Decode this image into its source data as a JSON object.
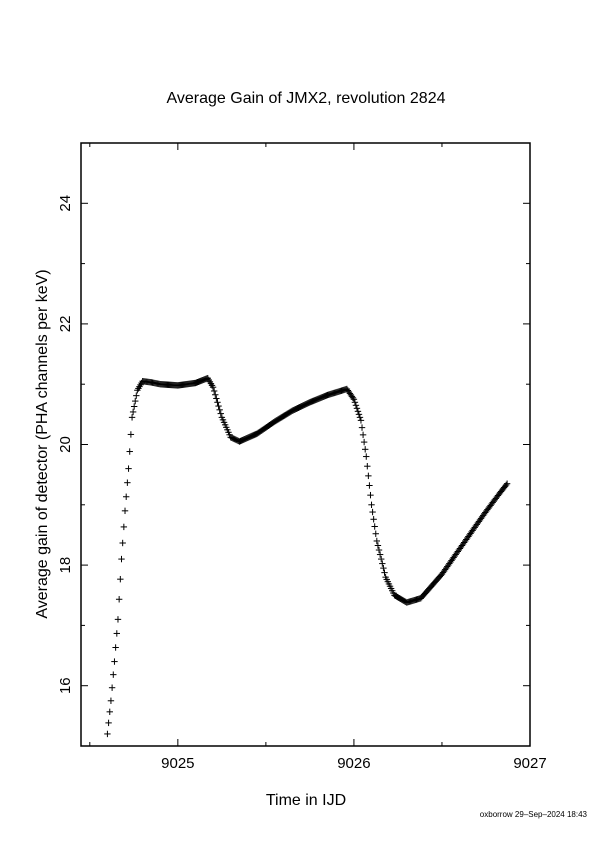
{
  "chart_data": {
    "type": "scatter",
    "title": "Average Gain of JMX2, revolution 2824",
    "xlabel": "Time in IJD",
    "ylabel": "Average gain of detector (PHA channels per keV)",
    "xlim": [
      9024.45,
      9027
    ],
    "ylim": [
      15,
      25
    ],
    "x_ticks": [
      9025,
      9026,
      9027
    ],
    "y_ticks": [
      16,
      18,
      20,
      22,
      24
    ],
    "x_tick_labels": [
      "9025",
      "9026",
      "9027"
    ],
    "y_tick_labels": [
      "16",
      "18",
      "20",
      "22",
      "24"
    ],
    "marker": "plus",
    "grid": false,
    "legend": "none",
    "series": [
      {
        "points": [
          [
            9024.6,
            15.2
          ],
          [
            9024.62,
            15.75
          ],
          [
            9024.64,
            16.4
          ],
          [
            9024.66,
            17.1
          ],
          [
            9024.68,
            18.1
          ],
          [
            9024.7,
            18.9
          ],
          [
            9024.72,
            19.6
          ],
          [
            9024.74,
            20.45
          ],
          [
            9024.77,
            20.9
          ],
          [
            9024.8,
            21.05
          ],
          [
            9024.85,
            21.03
          ],
          [
            9024.9,
            21.0
          ],
          [
            9025.0,
            20.98
          ],
          [
            9025.1,
            21.02
          ],
          [
            9025.17,
            21.1
          ],
          [
            9025.2,
            20.95
          ],
          [
            9025.25,
            20.45
          ],
          [
            9025.3,
            20.12
          ],
          [
            9025.35,
            20.05
          ],
          [
            9025.45,
            20.18
          ],
          [
            9025.55,
            20.38
          ],
          [
            9025.65,
            20.56
          ],
          [
            9025.75,
            20.7
          ],
          [
            9025.85,
            20.82
          ],
          [
            9025.96,
            20.92
          ],
          [
            9026.0,
            20.75
          ],
          [
            9026.04,
            20.4
          ],
          [
            9026.07,
            19.8
          ],
          [
            9026.1,
            19.0
          ],
          [
            9026.13,
            18.4
          ],
          [
            9026.18,
            17.8
          ],
          [
            9026.23,
            17.5
          ],
          [
            9026.3,
            17.38
          ],
          [
            9026.38,
            17.45
          ],
          [
            9026.5,
            17.85
          ],
          [
            9026.62,
            18.35
          ],
          [
            9026.74,
            18.85
          ],
          [
            9026.83,
            19.2
          ],
          [
            9026.87,
            19.35
          ]
        ]
      }
    ]
  },
  "footer": {
    "stamp": "oxborrow 29–Sep–2024 18:43"
  }
}
